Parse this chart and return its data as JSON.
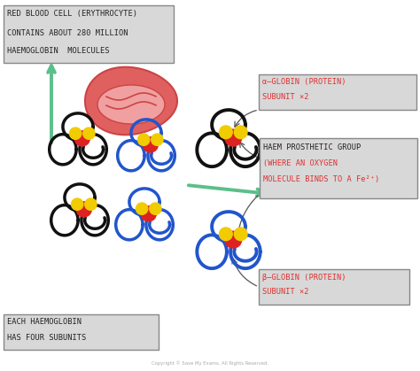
{
  "bg_color": "#ffffff",
  "box_bg": "#d8d8d8",
  "box_edge": "#888888",
  "red_text": "#e03030",
  "black_text": "#222222",
  "green_arrow": "#5bbf8a",
  "rbc_outer_fill": "#e06060",
  "rbc_outer_edge": "#cc4444",
  "rbc_inner_fill": "#f0a0a0",
  "rbc_inner_edge": "#cc4444",
  "subunit_black": "#111111",
  "subunit_blue": "#2255cc",
  "haem_red": "#dd2222",
  "haem_yellow": "#f0cc00",
  "box1_text": [
    "RED BLOOD CELL (ERYTHROCYTE)",
    "CONTAINS ABOUT 280 MILLION",
    "HAEMOGLOBIN  MOLECULES"
  ],
  "box2_text": [
    "α–GLOBIN (PROTEIN)",
    "SUBUNIT ×2"
  ],
  "box3_line1": "HAEM PROSTHETIC GROUP",
  "box3_line2": "(WHERE AN OXYGEN",
  "box3_line3": "MOLECULE BINDS TO A Fe²⁺)",
  "box4_text": [
    "β–GLOBIN (PROTEIN)",
    "SUBUNIT ×2"
  ],
  "box5_text": [
    "EACH HAEMOGLOBIN",
    "HAS FOUR SUBUNITS"
  ],
  "copyright": "Copyright © Save My Exams. All Rights Reserved."
}
